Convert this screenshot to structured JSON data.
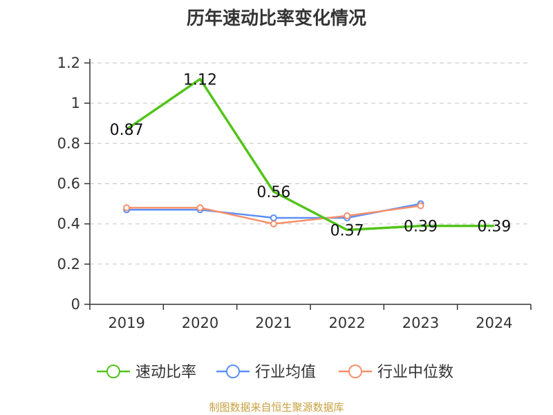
{
  "chart_data": {
    "type": "line",
    "title": "历年速动比率变化情况",
    "xlabel": "",
    "ylabel": "",
    "categories": [
      "2019",
      "2020",
      "2021",
      "2022",
      "2023",
      "2024"
    ],
    "ylim": [
      0,
      1.2
    ],
    "yticks": [
      "0",
      "0.2",
      "0.4",
      "0.6",
      "0.8",
      "1",
      "1.2"
    ],
    "grid": true,
    "legend_position": "bottom",
    "series": [
      {
        "name": "速动比率",
        "color": "#52c41a",
        "values": [
          0.87,
          1.12,
          0.56,
          0.37,
          0.39,
          0.39
        ],
        "labels": [
          "0.87",
          "1.12",
          "0.56",
          "0.37",
          "0.39",
          "0.39"
        ]
      },
      {
        "name": "行业均值",
        "color": "#5b8ff9",
        "values": [
          0.47,
          0.47,
          0.43,
          0.43,
          0.5,
          null
        ]
      },
      {
        "name": "行业中位数",
        "color": "#f6906a",
        "values": [
          0.48,
          0.48,
          0.4,
          0.44,
          0.49,
          null
        ]
      }
    ]
  },
  "source_note": "制图数据来自恒生聚源数据库",
  "colors": {
    "source_note": "#c8a040",
    "axis": "#333333",
    "grid": "#cccccc"
  }
}
